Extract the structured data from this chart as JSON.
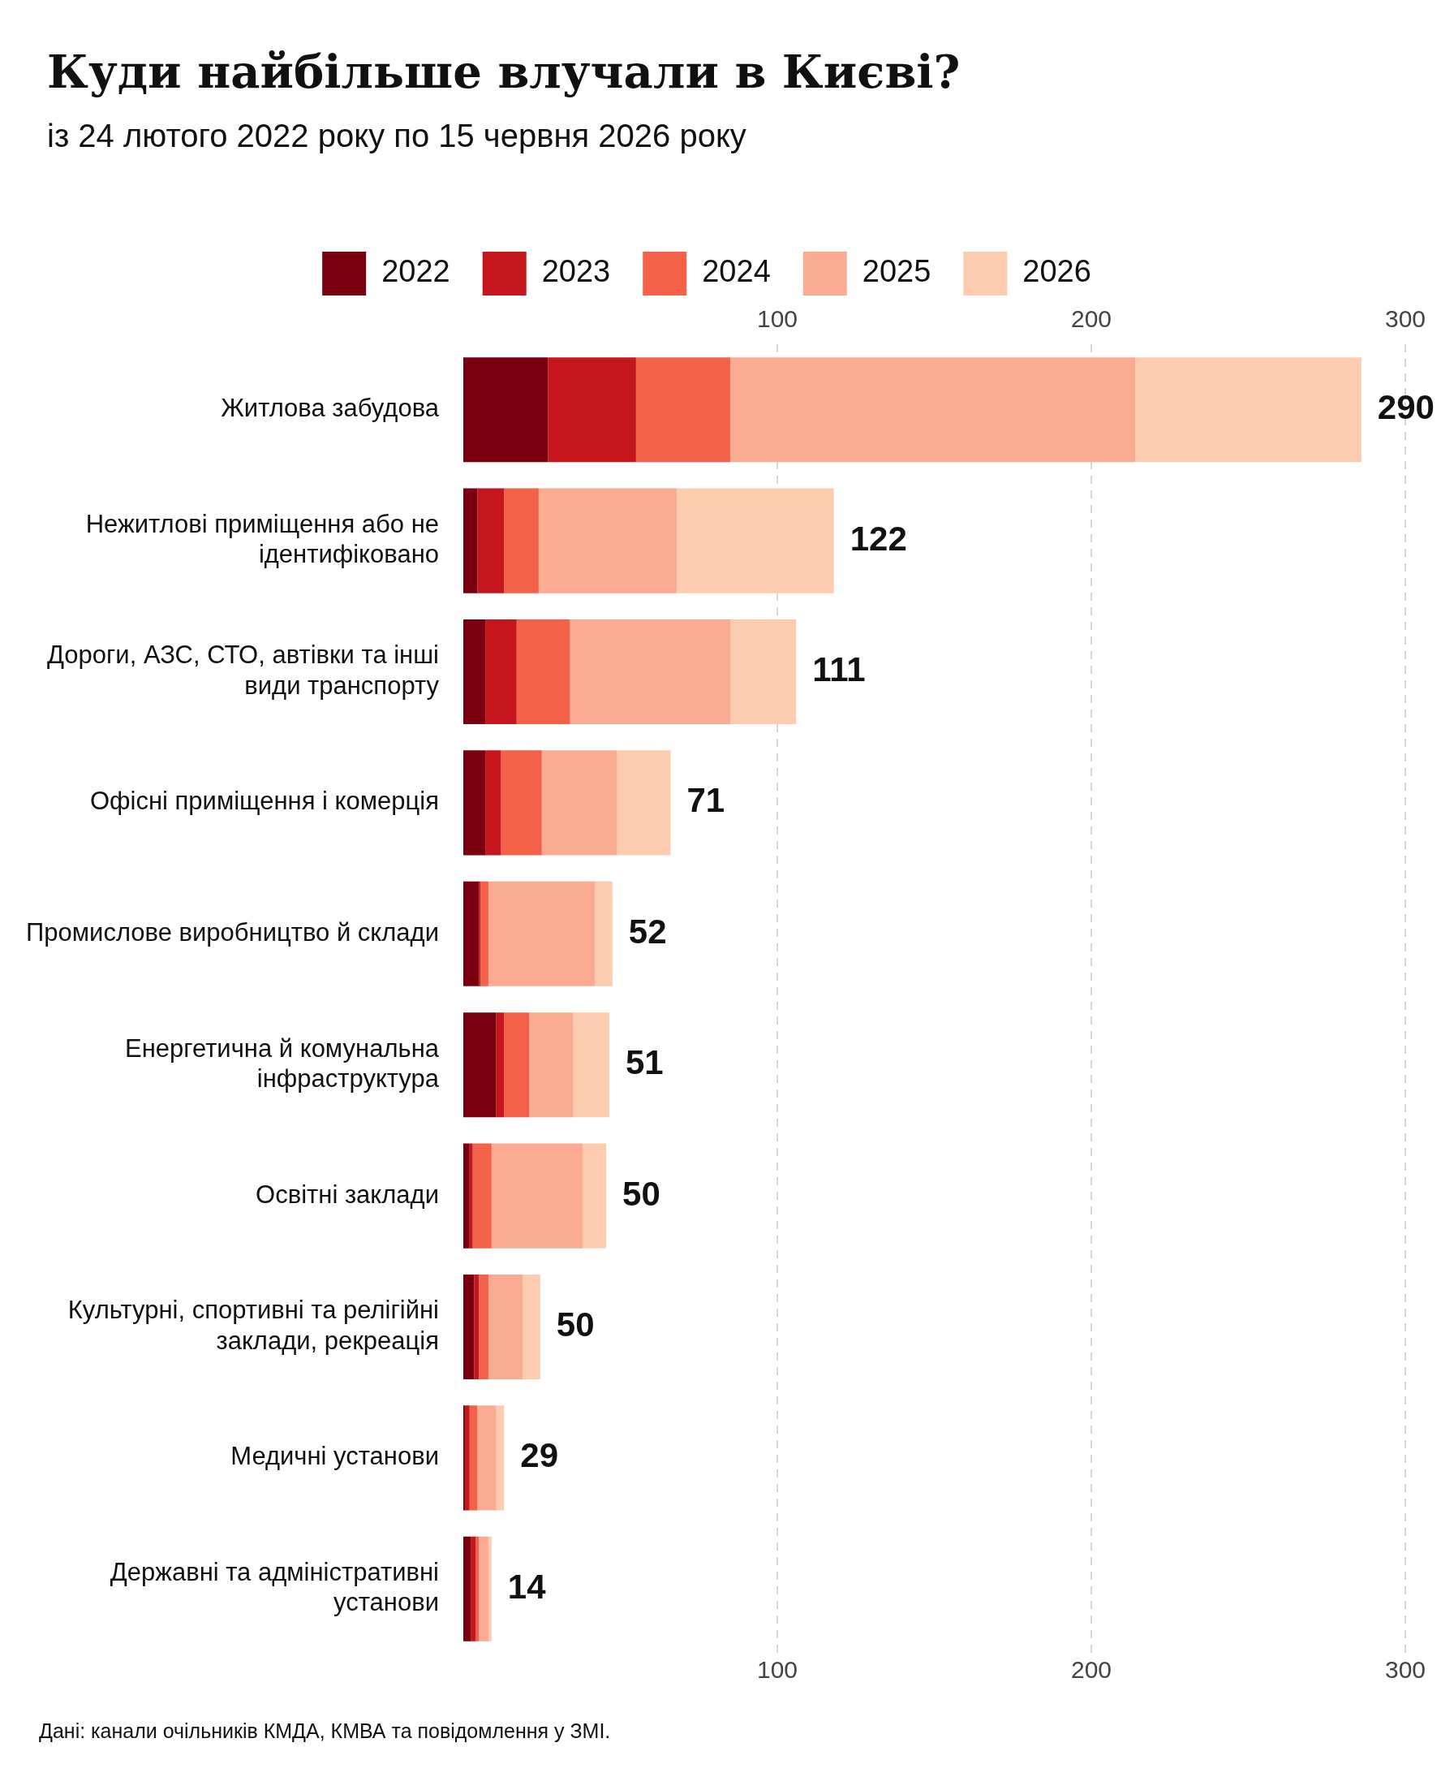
{
  "chart_data": {
    "type": "bar",
    "orientation": "horizontal",
    "stacked": true,
    "title": "Куди найбільше влучали в Києві?",
    "subtitle": "із 24 лютого 2022 року по 15 червня 2026 року",
    "categories": [
      "Житлова забудова",
      "Нежитлові приміщення або не ідентифіковано",
      "Дороги, АЗС, СТО, автівки та інші види транспорту",
      "Офісні приміщення і комерція",
      "Промислове виробництво й склади",
      "Енергетична й комунальна інфраструктура",
      "Освітні заклади",
      "Культурні, спортивні та релігійні заклади, рекреація",
      "Медичні установи",
      "Державні та адміністративні установи"
    ],
    "series": [
      {
        "name": "2022",
        "color": "#7a0010",
        "values": [
          27,
          4.5,
          7,
          7,
          5,
          10.5,
          2,
          3.5,
          0.5,
          2.5
        ]
      },
      {
        "name": "2023",
        "color": "#c4161c",
        "values": [
          28,
          8.5,
          10,
          5,
          0.5,
          2.5,
          1,
          1.5,
          1.5,
          1.5
        ]
      },
      {
        "name": "2024",
        "color": "#f26148",
        "values": [
          30,
          11,
          17,
          13,
          2.5,
          8,
          6,
          3,
          2.5,
          1
        ]
      },
      {
        "name": "2025",
        "color": "#fbab91",
        "values": [
          129,
          44,
          51,
          24,
          34,
          14,
          29,
          11,
          6,
          3
        ]
      },
      {
        "name": "2026",
        "color": "#fdccb0",
        "values": [
          72,
          50,
          21,
          17,
          5.5,
          11.5,
          7.5,
          5.5,
          2.5,
          1
        ]
      }
    ],
    "xlim": [
      0,
      300
    ],
    "xticks": [
      100,
      200,
      300
    ],
    "x2lim": [
      0,
      300
    ],
    "x2ticks": [
      100,
      200,
      300
    ],
    "grid": "x",
    "legend": "top",
    "annotations": [
      {
        "text": "290",
        "x": 286,
        "y": "Житлова забудова"
      },
      {
        "text": "122",
        "x": 118,
        "y": "Нежитлові приміщення або не ідентифіковано"
      },
      {
        "text": "111",
        "x": 106,
        "y": "Дороги, АЗС, СТО, автівки та інші види транспорту"
      },
      {
        "text": "71",
        "x": 66,
        "y": "Офісні приміщення і комерція"
      },
      {
        "text": "52",
        "x": 47.5,
        "y": "Промислове виробництво й склади"
      },
      {
        "text": "51",
        "x": 46.5,
        "y": "Енергетична й комунальна інфраструктура"
      },
      {
        "text": "50",
        "x": 45.5,
        "y": "Освітні заклади"
      },
      {
        "text": "50",
        "x": 24.5,
        "y": "Культурні, спортивні та релігійні заклади, рекреація"
      },
      {
        "text": "29",
        "x": 13,
        "y": "Медичні установи"
      },
      {
        "text": "14",
        "x": 9,
        "y": "Державні та адміністративні установи"
      },
      "Дані: канали очільників КМДА, КМВА та повідомлення у ЗМІ."
    ]
  }
}
